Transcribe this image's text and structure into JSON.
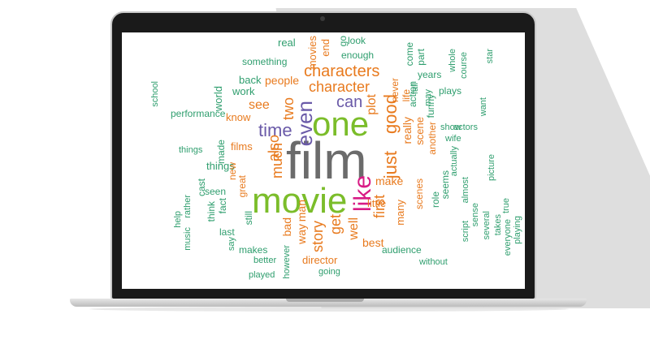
{
  "wordcloud": {
    "words": [
      "film",
      "movie",
      "one",
      "like",
      "even",
      "time",
      "characters",
      "character",
      "good",
      "just",
      "story",
      "two",
      "much",
      "see",
      "can",
      "people",
      "also",
      "get",
      "well",
      "first",
      "make",
      "really",
      "plot",
      "director",
      "best",
      "bad",
      "way",
      "know",
      "films",
      "little",
      "many",
      "scenes",
      "scene",
      "life",
      "never",
      "another",
      "seems",
      "man",
      "great",
      "things",
      "seen",
      "cast",
      "think",
      "fact",
      "new",
      "made",
      "something",
      "back",
      "work",
      "world",
      "end",
      "movies",
      "go",
      "real",
      "look",
      "enough",
      "part",
      "years",
      "action",
      "come",
      "plays",
      "funny",
      "role",
      "actually",
      "almost",
      "script",
      "audience",
      "makes",
      "better",
      "going",
      "played",
      "still",
      "last",
      "say",
      "however",
      "sense",
      "several",
      "without",
      "whole",
      "course",
      "takes",
      "show",
      "wife",
      "actors",
      "picture",
      "true",
      "playing",
      "everyone",
      "performance",
      "rather",
      "help",
      "music",
      "school",
      "things",
      "fall",
      "may",
      "star",
      "want"
    ]
  }
}
